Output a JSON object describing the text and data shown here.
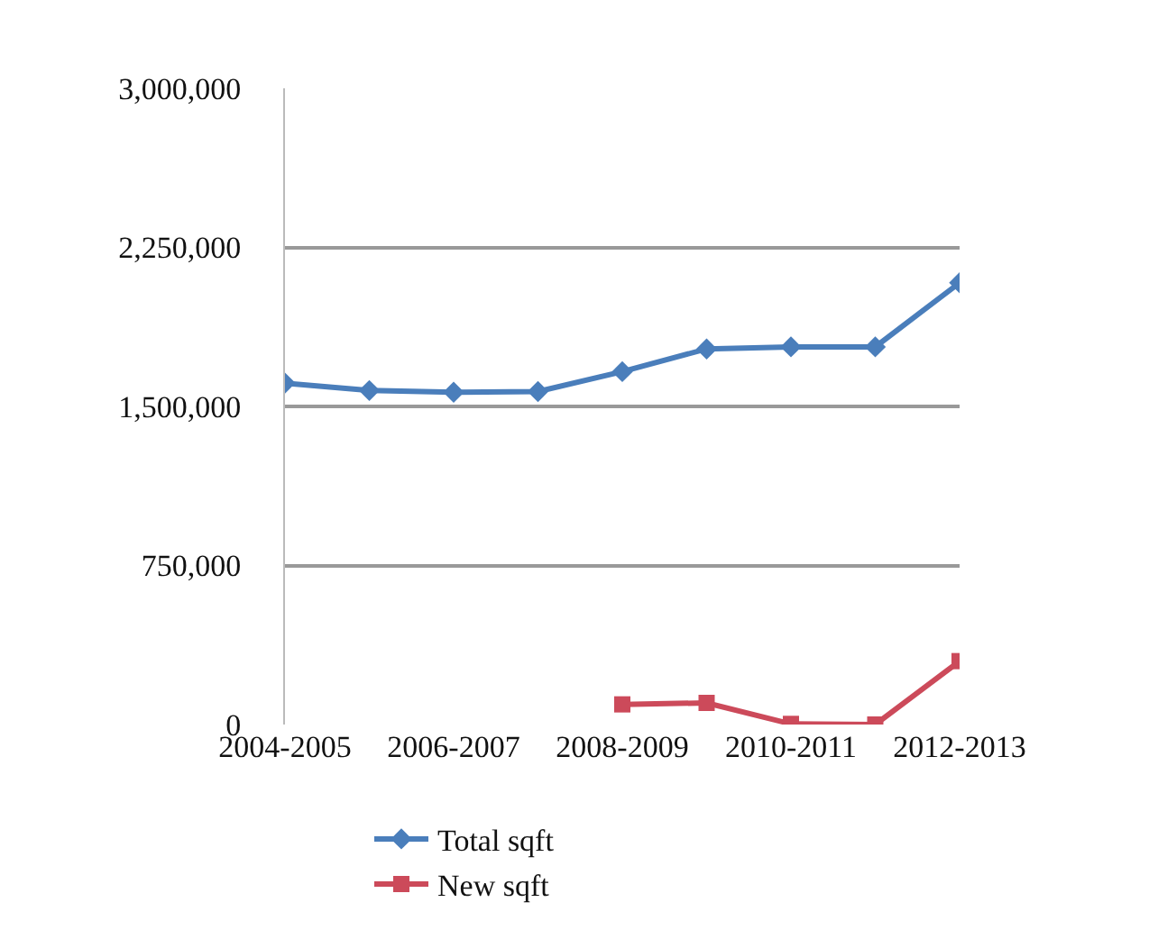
{
  "chart_data": {
    "type": "line",
    "categories": [
      "2004-2005",
      null,
      "2006-2007",
      null,
      "2008-2009",
      null,
      "2010-2011",
      null,
      "2012-2013"
    ],
    "series": [
      {
        "name": "Total sqft",
        "color": "#4a7ebb",
        "marker": "diamond",
        "values": [
          1610000,
          1575000,
          1567000,
          1570000,
          1664000,
          1771000,
          1781000,
          1781000,
          2083000
        ]
      },
      {
        "name": "New sqft",
        "color": "#cc4a5a",
        "marker": "square",
        "values": [
          null,
          null,
          null,
          null,
          95000,
          102000,
          3000,
          0,
          299000
        ]
      }
    ],
    "ylim": [
      0,
      3000000
    ],
    "yticks": [
      {
        "value": 0,
        "label": "0"
      },
      {
        "value": 750000,
        "label": "750,000"
      },
      {
        "value": 1500000,
        "label": "1,500,000"
      },
      {
        "value": 2250000,
        "label": "2,250,000"
      },
      {
        "value": 3000000,
        "label": "3,000,000"
      }
    ],
    "grid": "y",
    "legend": "bottom",
    "line_style": "solid"
  }
}
